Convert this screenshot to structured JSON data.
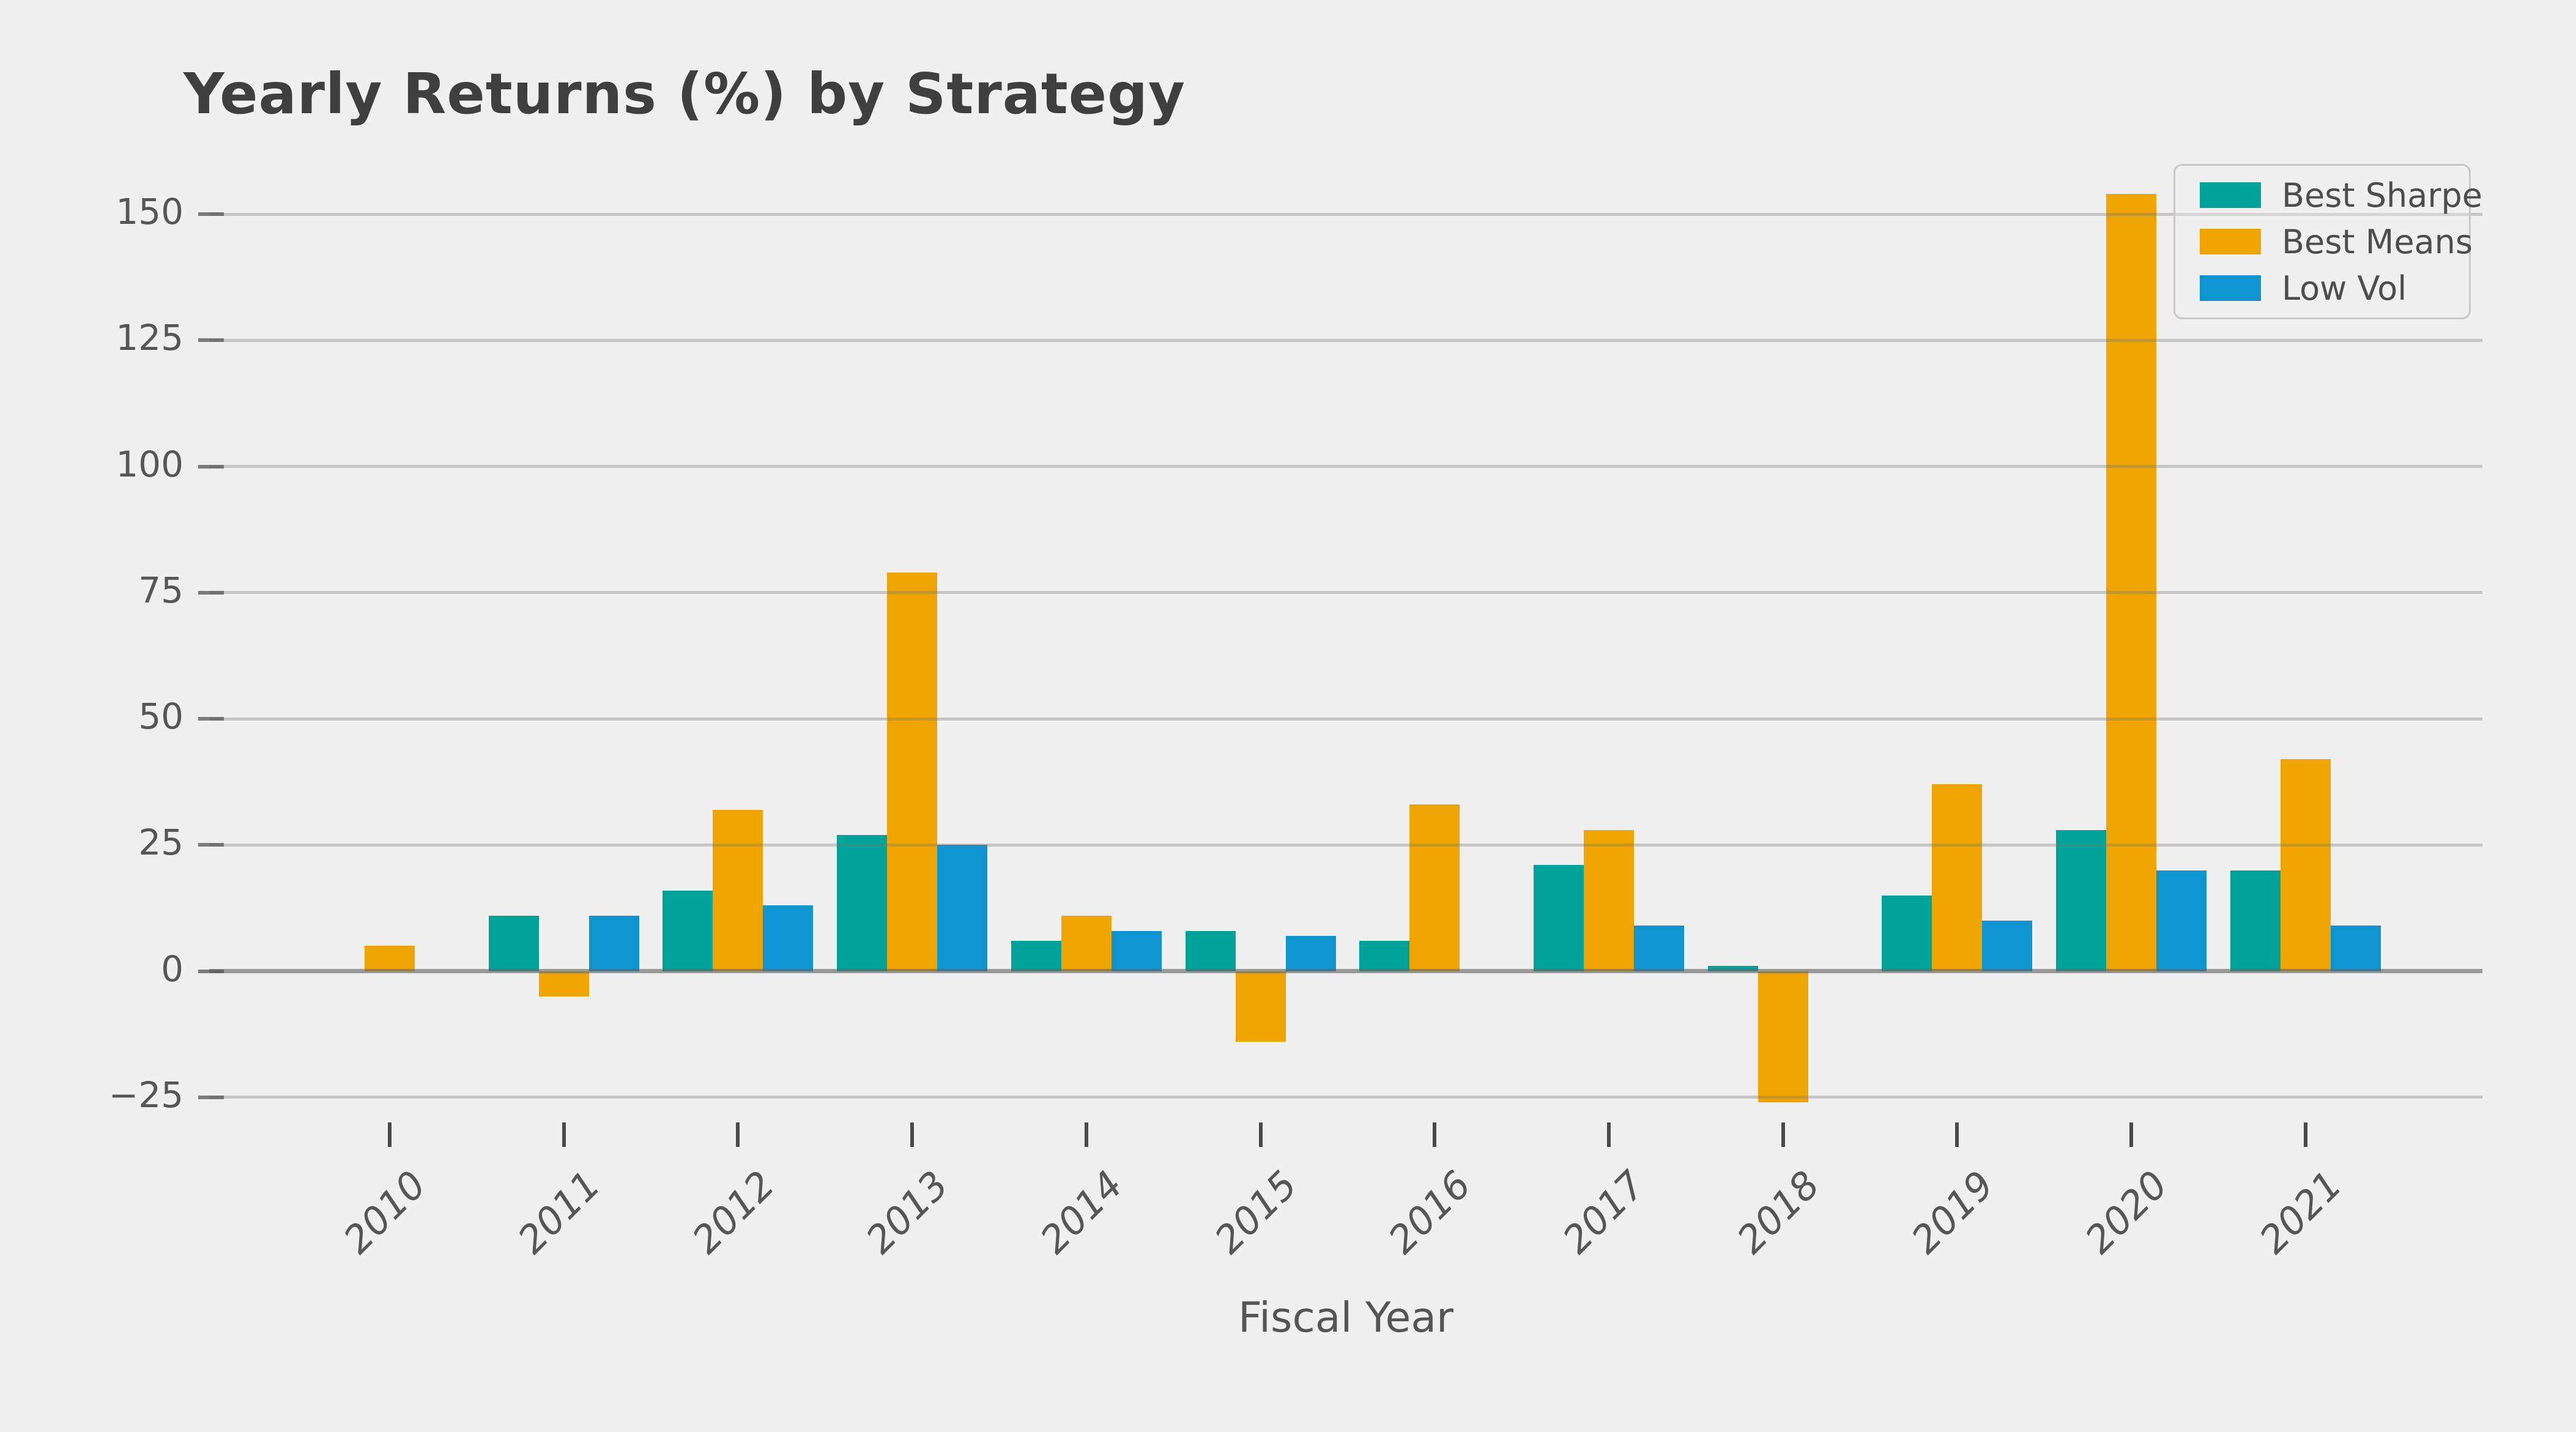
{
  "figure": {
    "background_color": "#f0f0f0",
    "title": "Yearly Returns (%) by Strategy"
  },
  "chart_data": {
    "type": "bar",
    "title": "Yearly Returns (%) by Strategy",
    "xlabel": "Fiscal Year",
    "ylabel": "",
    "categories": [
      "2010",
      "2011",
      "2012",
      "2013",
      "2014",
      "2015",
      "2016",
      "2017",
      "2018",
      "2019",
      "2020",
      "2021"
    ],
    "series": [
      {
        "name": "Best Sharpe",
        "color": "#00a39a",
        "values": [
          0,
          11,
          16,
          27,
          6,
          8,
          6,
          21,
          1,
          15,
          28,
          20
        ]
      },
      {
        "name": "Best Means",
        "color": "#efa400",
        "values": [
          5,
          -5,
          32,
          79,
          11,
          -14,
          33,
          28,
          -26,
          37,
          154,
          42
        ]
      },
      {
        "name": "Low Vol",
        "color": "#0d94d1",
        "values": [
          0,
          11,
          13,
          25,
          8,
          7,
          0,
          9,
          0,
          10,
          20,
          9
        ]
      }
    ],
    "yticks": [
      150,
      125,
      100,
      75,
      50,
      25,
      0,
      -25
    ],
    "ytick_labels": [
      "150",
      "125",
      "100",
      "75",
      "50",
      "25",
      "0",
      "−25"
    ],
    "ylim": [
      -31,
      165
    ],
    "grid": true,
    "gridline_color": "#c2c2c2",
    "zero_line_color": "#a6a6a6",
    "legend_position": "upper right",
    "legend_labels": [
      "Best Sharpe",
      "Best Means",
      "Low Vol"
    ]
  }
}
